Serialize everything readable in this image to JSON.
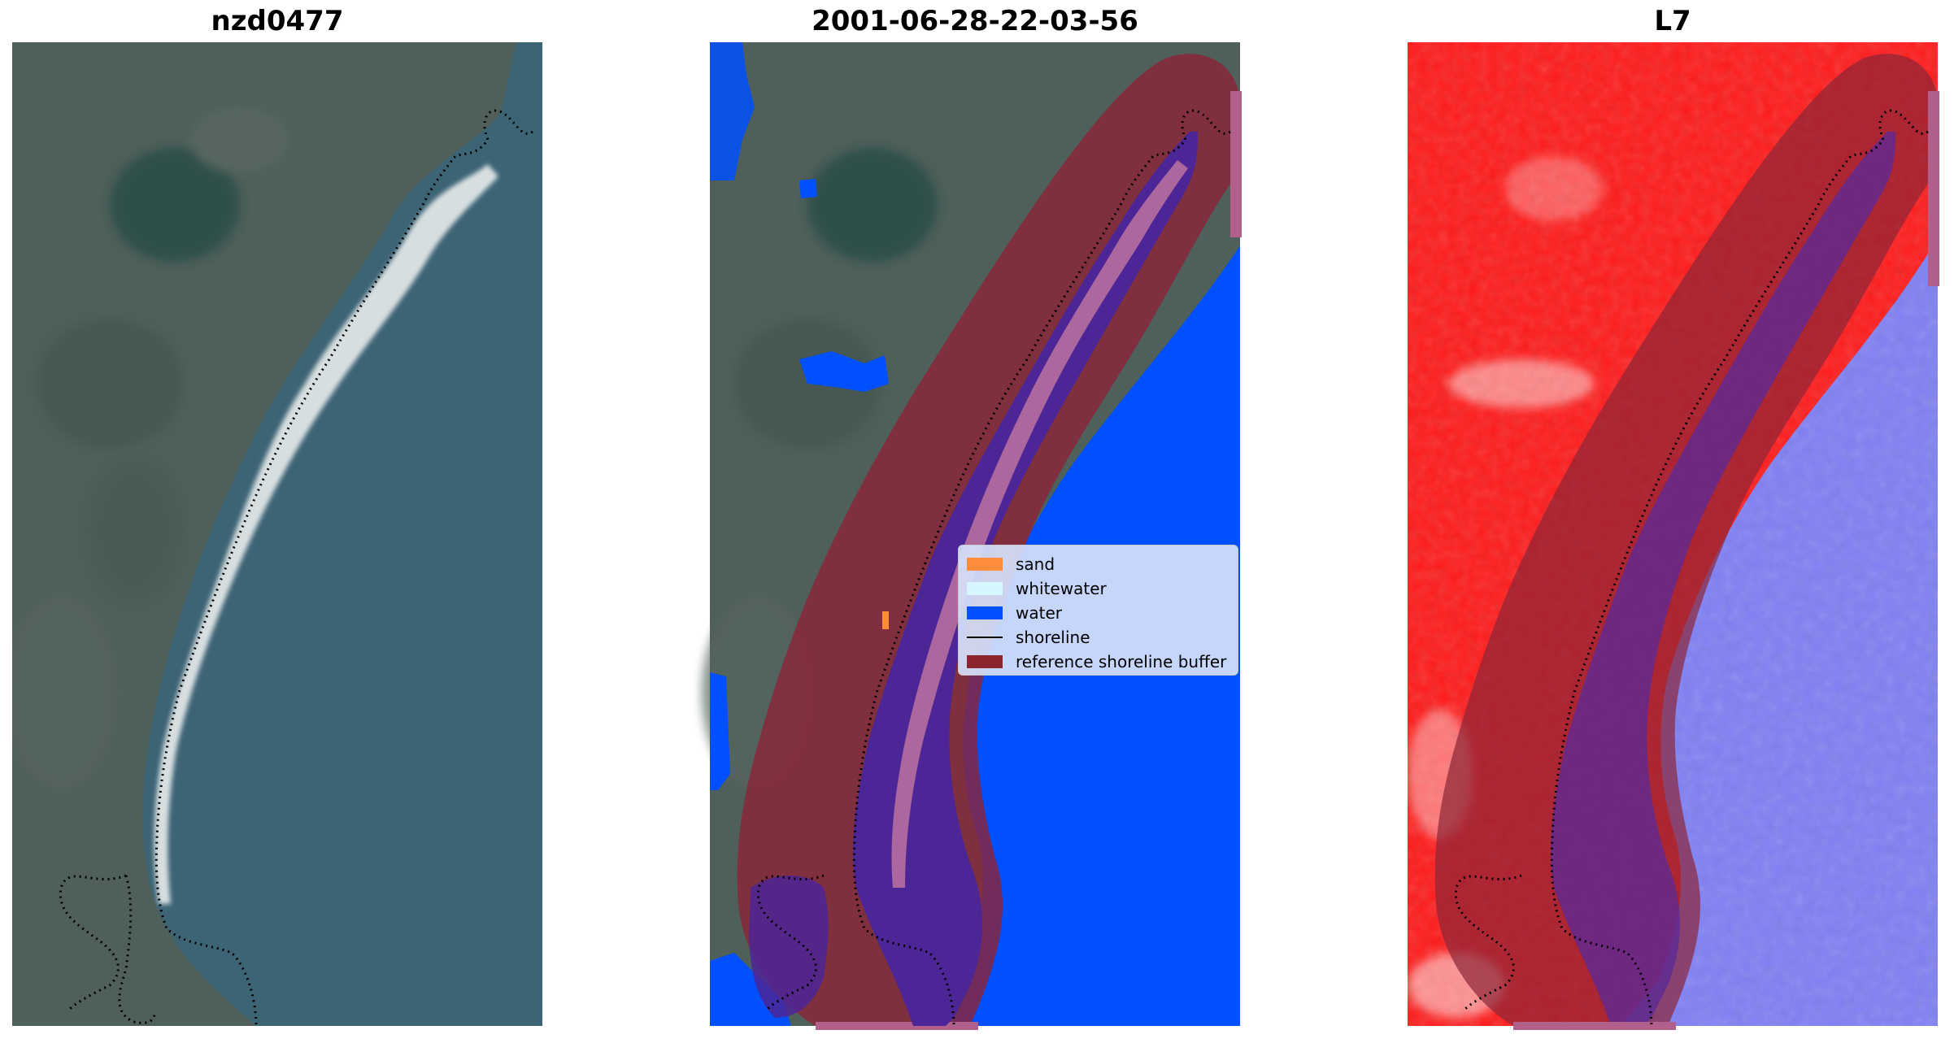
{
  "panels": [
    {
      "title": "nzd0477"
    },
    {
      "title": "2001-06-28-22-03-56"
    },
    {
      "title": "L7"
    }
  ],
  "legend": {
    "items": [
      {
        "label": "sand",
        "color": "#ff8c3a",
        "kind": "patch"
      },
      {
        "label": "whitewater",
        "color": "#d6f7ff",
        "kind": "patch"
      },
      {
        "label": "water",
        "color": "#0050ff",
        "kind": "patch"
      },
      {
        "label": "shoreline",
        "color": "#000000",
        "kind": "line"
      },
      {
        "label": "reference shoreline buffer",
        "color": "#8b2530",
        "kind": "patch"
      }
    ]
  },
  "colors": {
    "land": "#4f5f5a",
    "sea": "#3d6475",
    "beach": "#e8ecec",
    "water_class": "#0050ff",
    "buffer": "#8b2538",
    "index_red": "#ff1a1a",
    "index_blue": "#7f7ff5"
  }
}
